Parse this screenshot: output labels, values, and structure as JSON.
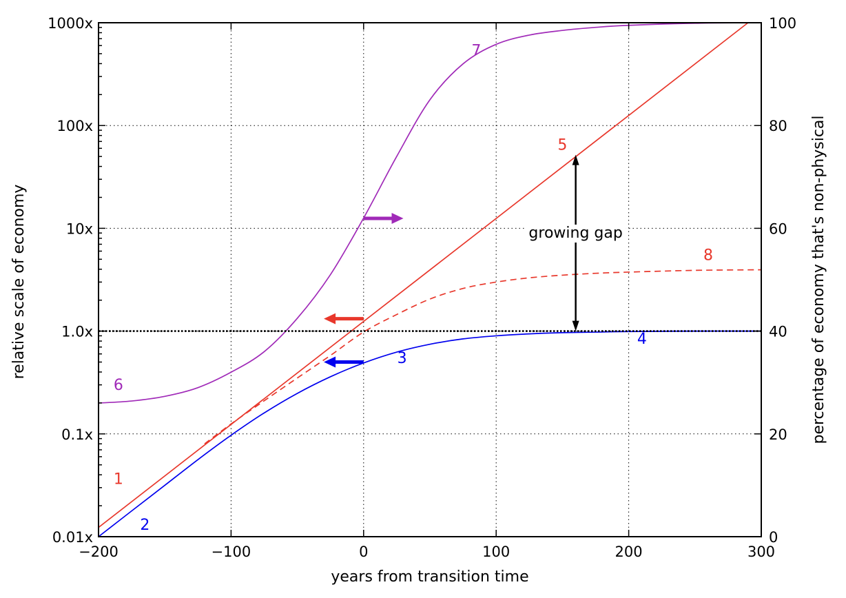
{
  "chart_data": {
    "type": "line",
    "xlabel": "years from transition time",
    "ylabel_left": "relative scale of economy",
    "ylabel_right": "percentage of economy that's non-physical",
    "xlim": [
      -200,
      300
    ],
    "ylim_left": [
      0.01,
      1000
    ],
    "y_left_scale": "log",
    "ylim_right": [
      0,
      100
    ],
    "grid": true,
    "x_ticks": [
      -200,
      -100,
      0,
      100,
      200,
      300
    ],
    "x_tick_labels": [
      "−200",
      "−100",
      "0",
      "100",
      "200",
      "300"
    ],
    "y_left_ticks": [
      0.01,
      0.1,
      1,
      10,
      100,
      1000
    ],
    "y_left_tick_labels": [
      "0.01x",
      "0.1x",
      "1.0x",
      "10x",
      "100x",
      "1000x"
    ],
    "y_right_ticks": [
      0,
      20,
      40,
      60,
      80,
      100
    ],
    "y_right_tick_labels": [
      "0",
      "20",
      "40",
      "60",
      "80",
      "100"
    ],
    "colors": {
      "red": "#e8372b",
      "blue": "#0000ee",
      "purple": "#a02ab8",
      "black": "#000000"
    },
    "series": [
      {
        "axis": "left",
        "color": "#e8372b",
        "style": "solid",
        "x": [
          -200,
          290
        ],
        "y": [
          0.0123,
          1000
        ]
      },
      {
        "axis": "left",
        "color": "#0000ee",
        "style": "solid",
        "x": [
          -200,
          -175,
          -150,
          -125,
          -100,
          -75,
          -50,
          -25,
          0,
          25,
          50,
          75,
          100,
          125,
          150,
          175,
          200,
          250,
          300
        ],
        "y": [
          0.01,
          0.0178,
          0.0316,
          0.0562,
          0.097,
          0.16,
          0.248,
          0.36,
          0.49,
          0.625,
          0.745,
          0.84,
          0.9,
          0.94,
          0.965,
          0.978,
          0.99,
          1.0,
          1.0
        ]
      },
      {
        "axis": "left",
        "color": "#e8372b",
        "style": "dashed",
        "x": [
          -120,
          -100,
          -75,
          -50,
          -25,
          0,
          25,
          50,
          75,
          100,
          125,
          150,
          175,
          200,
          250,
          300
        ],
        "y": [
          0.08,
          0.125,
          0.21,
          0.35,
          0.58,
          0.98,
          1.45,
          2.05,
          2.6,
          3.0,
          3.3,
          3.5,
          3.65,
          3.75,
          3.9,
          3.95
        ]
      },
      {
        "axis": "right",
        "color": "#a02ab8",
        "style": "solid",
        "x": [
          -200,
          -175,
          -150,
          -125,
          -100,
          -75,
          -50,
          -25,
          0,
          25,
          50,
          75,
          100,
          125,
          150,
          175,
          200,
          250,
          300
        ],
        "y": [
          26.0,
          26.4,
          27.3,
          29.0,
          32.0,
          36.0,
          42.5,
          51.0,
          62.0,
          74.0,
          85.0,
          92.0,
          95.8,
          97.6,
          98.5,
          99.1,
          99.5,
          99.9,
          100
        ]
      }
    ],
    "annotations": [
      {
        "text": "1",
        "x": -185,
        "y": 0.0325,
        "axis": "left",
        "color": "#e8372b"
      },
      {
        "text": "2",
        "x": -165,
        "y": 0.0117,
        "axis": "left",
        "color": "#0000ee"
      },
      {
        "text": "3",
        "x": 29,
        "y": 0.49,
        "axis": "left",
        "color": "#0000ee"
      },
      {
        "text": "4",
        "x": 210,
        "y": 0.75,
        "axis": "left",
        "color": "#0000ee"
      },
      {
        "text": "5",
        "x": 150,
        "y": 58,
        "axis": "left",
        "color": "#e8372b"
      },
      {
        "text": "6",
        "x": -185,
        "y": 0.268,
        "axis": "left",
        "color": "#a02ab8"
      },
      {
        "text": "7",
        "x": 85,
        "y": 480,
        "axis": "left",
        "color": "#a02ab8"
      },
      {
        "text": "8",
        "x": 260,
        "y": 4.9,
        "axis": "left",
        "color": "#e8372b"
      },
      {
        "text": "growing gap",
        "x": 160,
        "y": 8.1,
        "axis": "left",
        "color": "#000000"
      }
    ],
    "arrows": [
      {
        "color": "#a02ab8",
        "from_x": 0,
        "to_x": 30,
        "y": 12.5,
        "axis": "left"
      },
      {
        "color": "#e8372b",
        "from_x": 0,
        "to_x": -30,
        "y": 1.32,
        "axis": "left"
      },
      {
        "color": "#0000ee",
        "from_x": 0,
        "to_x": -30,
        "y": 0.5,
        "axis": "left"
      },
      {
        "color": "#000000",
        "x": 160,
        "from_y": 1.0,
        "to_y": 52,
        "axis": "left",
        "double": true
      }
    ],
    "reference_lines": [
      {
        "y": 1.0,
        "axis": "left",
        "color": "#000000",
        "style": "dotted"
      }
    ]
  }
}
